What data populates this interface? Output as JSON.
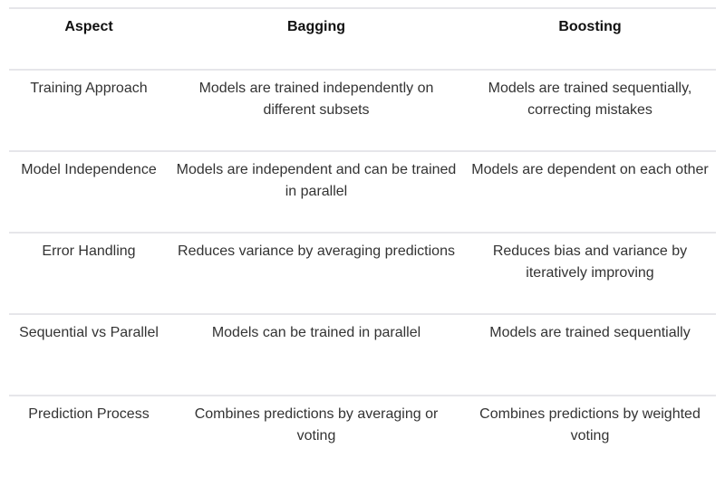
{
  "table": {
    "headers": [
      "Aspect",
      "Bagging",
      "Boosting"
    ],
    "rows": [
      [
        "Training Approach",
        "Models are trained independently on different subsets",
        "Models are trained sequentially, correcting mistakes"
      ],
      [
        "Model Independence",
        "Models are independent and can be trained in parallel",
        "Models are dependent on each other"
      ],
      [
        "Error Handling",
        "Reduces variance by averaging predictions",
        "Reduces bias and variance by iteratively improving"
      ],
      [
        "Sequential vs Parallel",
        "Models can be trained in parallel",
        "Models are trained sequentially"
      ],
      [
        "Prediction Process",
        "Combines predictions by averaging or voting",
        "Combines predictions by weighted voting"
      ]
    ]
  }
}
